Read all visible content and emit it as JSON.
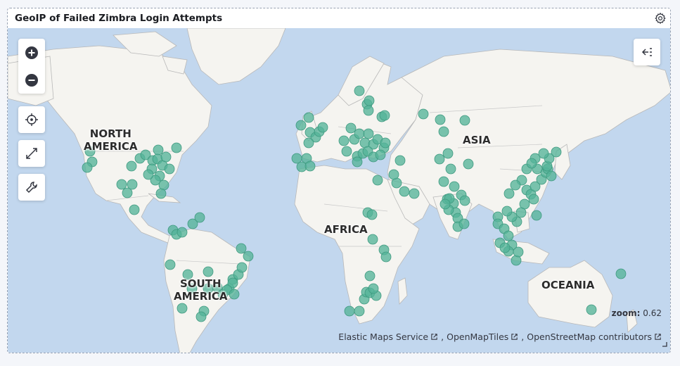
{
  "panel": {
    "title": "GeoIP of Failed Zimbra Login Attempts"
  },
  "controls": {
    "zoom_in_icon": "plus-circle-icon",
    "zoom_out_icon": "minus-circle-icon",
    "locate_icon": "crosshair-icon",
    "fullscreen_icon": "expand-icon",
    "tools_icon": "wrench-icon",
    "layers_icon": "collapse-left-icon",
    "settings_icon": "gear-icon"
  },
  "map": {
    "zoom_label": "zoom:",
    "zoom_value": "0.62",
    "continent_labels": {
      "north_america": "NORTH\nAMERICA",
      "south_america": "SOUTH\nAMERICA",
      "africa": "AFRICA",
      "asia": "ASIA",
      "oceania": "OCEANIA"
    },
    "colors": {
      "ocean": "#c2d7ee",
      "land": "#f5f4f0",
      "border": "#b3b3b3",
      "point": "#54b399"
    },
    "attribution": [
      "Elastic Maps Service",
      "OpenMapTiles",
      "OpenStreetMap contributors"
    ]
  }
}
